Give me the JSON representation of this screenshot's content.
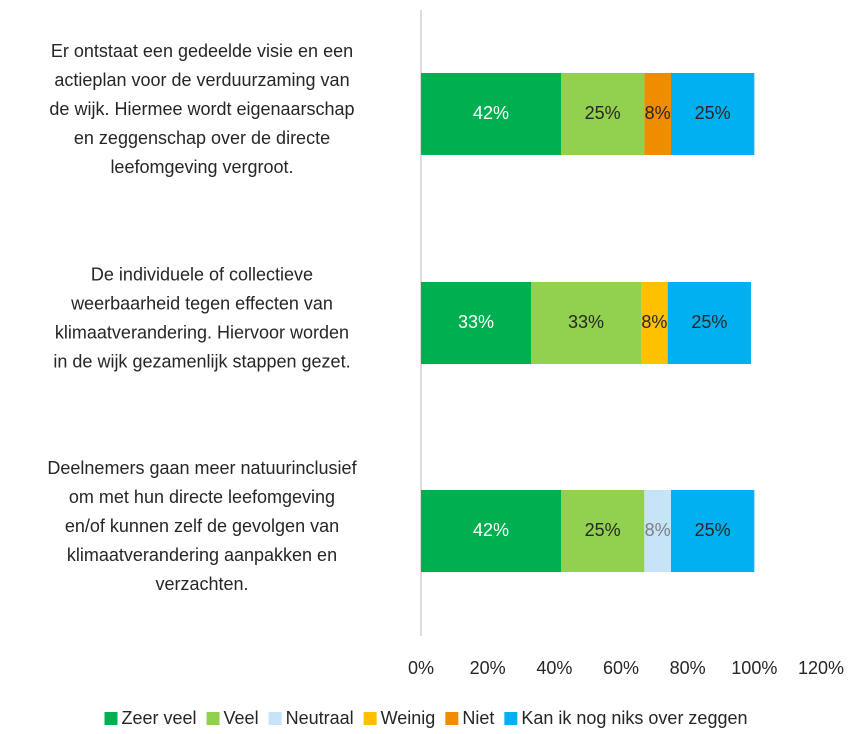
{
  "chart_data": {
    "type": "stacked-barh",
    "categories": [
      [
        "Er ontstaat een gedeelde visie en een",
        "actieplan voor de verduurzaming van",
        "de wijk. Hiermee wordt eigenaarschap",
        "en zeggenschap over de directe",
        "leefomgeving vergroot."
      ],
      [
        "De individuele of collectieve",
        "weerbaarheid tegen effecten van",
        "klimaatverandering. Hiervoor worden",
        "in de wijk gezamenlijk stappen gezet."
      ],
      [
        "Deelnemers gaan meer natuurinclusief",
        "om met hun directe leefomgeving",
        "en/of kunnen zelf de gevolgen van",
        "klimaatverandering aanpakken en",
        "verzachten."
      ]
    ],
    "series": [
      {
        "name": "Zeer veel",
        "color": "#00b050",
        "label_color": "#ffffff",
        "values": [
          42,
          33,
          42
        ],
        "value_labels": [
          "42%",
          "33%",
          "42%"
        ]
      },
      {
        "name": "Veel",
        "color": "#92d050",
        "label_color": "#262626",
        "values": [
          25,
          33,
          25
        ],
        "value_labels": [
          "25%",
          "33%",
          "25%"
        ]
      },
      {
        "name": "Neutraal",
        "color": "#c6e3f7",
        "label_color": "#7f7f7f",
        "values": [
          null,
          null,
          8
        ],
        "value_labels": [
          null,
          null,
          "8%"
        ]
      },
      {
        "name": "Weinig",
        "color": "#ffc000",
        "label_color": "#262626",
        "values": [
          null,
          8,
          null
        ],
        "value_labels": [
          null,
          "8%",
          null
        ]
      },
      {
        "name": "Niet",
        "color": "#f08c00",
        "label_color": "#262626",
        "values": [
          8,
          null,
          null
        ],
        "value_labels": [
          "8%",
          null,
          null
        ]
      },
      {
        "name": "Kan ik nog niks over zeggen",
        "color": "#00b0f0",
        "label_color": "#262626",
        "values": [
          25,
          25,
          25
        ],
        "value_labels": [
          "25%",
          "25%",
          "25%"
        ]
      }
    ],
    "xlim": [
      0,
      120
    ],
    "xticks": [
      {
        "value": 0,
        "label": "0%"
      },
      {
        "value": 20,
        "label": "20%"
      },
      {
        "value": 40,
        "label": "40%"
      },
      {
        "value": 60,
        "label": "60%"
      },
      {
        "value": 80,
        "label": "80%"
      },
      {
        "value": 100,
        "label": "100%"
      },
      {
        "value": 120,
        "label": "120%"
      }
    ],
    "legend": "bottom"
  }
}
